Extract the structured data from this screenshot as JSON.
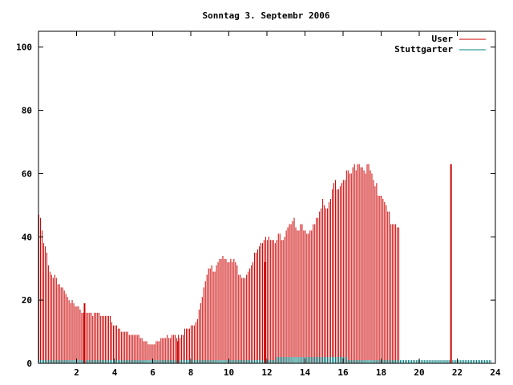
{
  "chart_data": {
    "type": "bar",
    "title": "Sonntag 3. Septembr 2006",
    "xlabel": "",
    "ylabel": "",
    "xlim": [
      0,
      24
    ],
    "ylim": [
      0,
      105
    ],
    "x_ticks": [
      2,
      4,
      6,
      8,
      10,
      12,
      14,
      16,
      18,
      20,
      22,
      24
    ],
    "y_ticks": [
      0,
      20,
      40,
      60,
      80,
      100
    ],
    "grid": false,
    "legend_position": "top-right",
    "series": [
      {
        "name": "User",
        "color": "#cc0000",
        "style": "impulses",
        "x_start": 0.0,
        "x_step": 0.0833,
        "values": [
          47,
          46,
          42,
          38,
          37,
          35,
          31,
          29,
          28,
          27,
          28,
          27,
          25,
          25,
          24,
          24,
          23,
          22,
          21,
          20,
          19,
          20,
          19,
          18,
          18,
          18,
          17,
          16,
          16,
          16,
          16,
          16,
          16,
          16,
          15,
          16,
          16,
          16,
          16,
          15,
          15,
          15,
          15,
          15,
          15,
          15,
          13,
          12,
          12,
          12,
          11,
          11,
          10,
          10,
          10,
          10,
          10,
          9,
          9,
          9,
          9,
          9,
          9,
          9,
          8,
          8,
          7,
          7,
          7,
          6,
          6,
          6,
          6,
          6,
          7,
          7,
          7,
          8,
          8,
          8,
          8,
          9,
          8,
          8,
          9,
          9,
          9,
          8,
          9,
          8,
          9,
          9,
          11,
          11,
          11,
          11,
          12,
          12,
          12,
          13,
          14,
          17,
          19,
          21,
          24,
          26,
          28,
          30,
          30,
          31,
          29,
          29,
          31,
          32,
          33,
          33,
          34,
          33,
          33,
          32,
          32,
          33,
          32,
          33,
          32,
          31,
          28,
          28,
          27,
          27,
          27,
          28,
          29,
          30,
          31,
          32,
          35,
          35,
          36,
          37,
          38,
          38,
          39,
          40,
          39,
          40,
          39,
          39,
          39,
          38,
          39,
          41,
          41,
          39,
          39,
          40,
          42,
          43,
          44,
          44,
          45,
          46,
          43,
          42,
          42,
          44,
          44,
          42,
          42,
          41,
          41,
          42,
          42,
          44,
          44,
          46,
          46,
          48,
          49,
          52,
          50,
          49,
          49,
          51,
          52,
          55,
          57,
          58,
          55,
          55,
          56,
          57,
          58,
          58,
          61,
          61,
          60,
          60,
          62,
          63,
          61,
          63,
          63,
          62,
          62,
          61,
          60,
          63,
          63,
          61,
          60,
          58,
          56,
          57,
          53,
          53,
          53,
          52,
          51,
          50,
          48,
          48,
          44,
          44,
          44,
          44,
          43,
          43
        ]
      },
      {
        "name": "Stuttgarter",
        "color": "#008080",
        "style": "impulses",
        "x_start": 0.0,
        "x_step": 0.0833,
        "values": [
          1,
          1,
          1,
          1,
          1,
          1,
          1,
          1,
          1,
          1,
          1,
          1,
          1,
          1,
          1,
          1,
          1,
          1,
          1,
          1,
          1,
          1,
          1,
          1,
          1,
          1,
          1,
          1,
          1,
          1,
          1,
          1,
          1,
          1,
          1,
          1,
          1,
          1,
          1,
          1,
          1,
          1,
          1,
          1,
          1,
          1,
          1,
          1,
          1,
          1,
          1,
          1,
          1,
          1,
          1,
          1,
          1,
          1,
          1,
          1,
          1,
          1,
          1,
          1,
          1,
          1,
          1,
          1,
          1,
          1,
          1,
          1,
          1,
          1,
          1,
          1,
          1,
          1,
          1,
          1,
          1,
          1,
          1,
          1,
          1,
          1,
          1,
          1,
          1,
          1,
          1,
          1,
          1,
          1,
          1,
          1,
          1,
          1,
          1,
          1,
          1,
          1,
          1,
          1,
          1,
          1,
          1,
          1,
          1,
          1,
          1,
          1,
          1,
          1,
          1,
          1,
          1,
          1,
          1,
          1,
          1,
          1,
          1,
          1,
          1,
          1,
          1,
          1,
          1,
          1,
          1,
          1,
          1,
          1,
          1,
          1,
          1,
          1,
          1,
          1,
          1,
          1,
          1,
          1,
          1,
          1,
          1,
          1,
          1,
          1,
          2,
          2,
          2,
          2,
          2,
          2,
          2,
          2,
          2,
          2,
          2,
          2,
          2,
          2,
          2,
          2,
          2,
          2,
          2,
          2,
          2,
          2,
          2,
          2,
          2,
          2,
          2,
          2,
          2,
          2,
          2,
          2,
          2,
          2,
          2,
          2,
          2,
          2,
          2,
          2,
          2,
          2,
          2,
          2,
          2,
          1,
          1,
          1,
          1,
          1,
          1,
          1,
          1,
          1,
          1,
          1,
          1,
          1,
          1,
          1,
          1,
          1,
          1,
          1,
          1,
          1,
          1,
          1,
          1,
          1,
          1,
          1,
          1,
          1,
          1,
          1,
          1,
          1,
          1,
          1,
          1,
          1,
          1,
          1,
          1,
          1,
          1,
          1,
          1,
          1,
          1,
          1,
          1,
          1,
          1,
          1,
          1,
          1,
          1,
          1,
          1,
          1,
          1,
          1,
          1,
          1,
          1,
          1,
          1,
          1,
          1,
          1,
          1,
          1,
          1,
          1,
          1,
          1,
          1,
          1,
          1,
          1,
          1,
          1,
          1,
          1,
          1,
          1,
          1,
          1,
          1,
          1,
          1,
          1,
          1,
          1
        ]
      }
    ],
    "highlights": [
      {
        "x": 2.42,
        "value": 19
      },
      {
        "x": 7.33,
        "value": 7
      },
      {
        "x": 11.92,
        "value": 32
      },
      {
        "x": 21.67,
        "value": 63
      }
    ]
  }
}
